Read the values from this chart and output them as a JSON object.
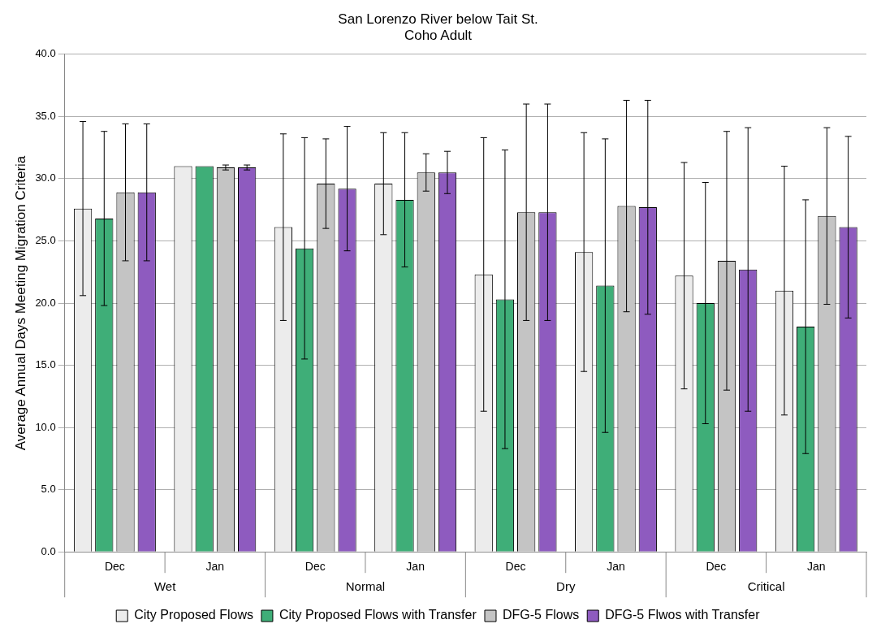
{
  "chart_data": {
    "type": "bar",
    "title": "San Lorenzo River below Tait St.",
    "subtitle": "Coho Adult",
    "ylabel": "Average Annual Days Meeting Migration Criteria",
    "categories": [
      "Dec",
      "Jan",
      "Dec",
      "Jan",
      "Dec",
      "Jan",
      "Dec",
      "Jan"
    ],
    "annotations": [
      "Wet",
      "Normal",
      "Dry",
      "Critical"
    ],
    "series": [
      {
        "name": "City Proposed Flows",
        "color": "#ececec",
        "values": [
          27.6,
          31.0,
          26.1,
          29.6,
          22.3,
          24.1,
          22.2,
          21.0
        ],
        "errors": [
          7,
          null,
          7.5,
          4.1,
          11,
          9.6,
          9.1,
          10
        ]
      },
      {
        "name": "City Proposed Flows with Transfer",
        "color": "#3fae78",
        "values": [
          26.8,
          31.0,
          24.4,
          28.3,
          20.3,
          21.4,
          20.0,
          18.1
        ],
        "errors": [
          7,
          null,
          8.9,
          5.4,
          12,
          11.8,
          9.7,
          10.2
        ]
      },
      {
        "name": "DFG-5 Flows",
        "color": "#c4c4c4",
        "values": [
          28.9,
          30.9,
          29.6,
          30.5,
          27.3,
          27.8,
          23.4,
          27.0
        ],
        "errors": [
          5.5,
          0.2,
          3.6,
          1.5,
          8.7,
          8.5,
          10.4,
          7.1
        ]
      },
      {
        "name": "DFG-5 Flwos with Transfer",
        "color": "#8e5bbf",
        "values": [
          28.9,
          30.9,
          29.2,
          30.5,
          27.3,
          27.7,
          22.7,
          26.1
        ],
        "errors": [
          5.5,
          0.2,
          5,
          1.7,
          8.7,
          8.6,
          11.4,
          7.3
        ]
      }
    ],
    "ylim": [
      0,
      40
    ],
    "yticks": [
      {
        "value": 0,
        "label": "0.0"
      },
      {
        "value": 5,
        "label": "5.0"
      },
      {
        "value": 10,
        "label": "10.0"
      },
      {
        "value": 15,
        "label": "15.0"
      },
      {
        "value": 20,
        "label": "20.0"
      },
      {
        "value": 25,
        "label": "25.0"
      },
      {
        "value": 30,
        "label": "30.0"
      },
      {
        "value": 35,
        "label": "35.0"
      },
      {
        "value": 40,
        "label": "40.0"
      }
    ],
    "grid": "y",
    "legend": "bottom"
  }
}
